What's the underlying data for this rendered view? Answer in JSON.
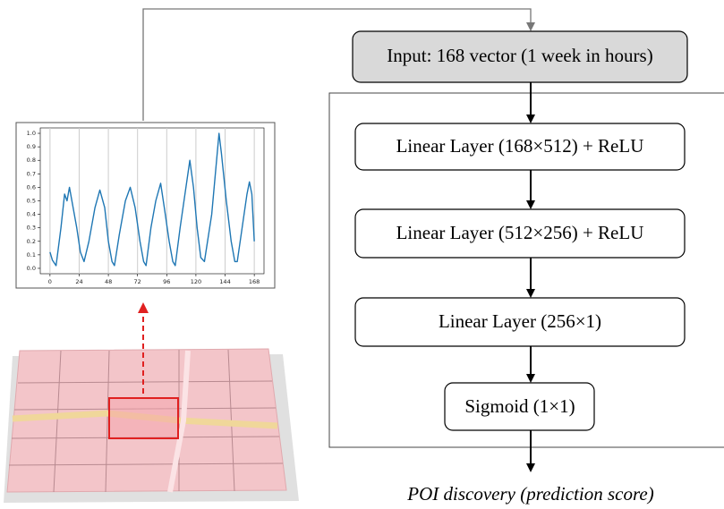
{
  "input": {
    "label": "Input: 168 vector (1 week in hours)"
  },
  "layers": [
    {
      "label": "Linear Layer (168×512) + ReLU"
    },
    {
      "label": "Linear Layer (512×256) + ReLU"
    },
    {
      "label": "Linear Layer (256×1)"
    },
    {
      "label": "Sigmoid (1×1)"
    }
  ],
  "output": {
    "label": "POI discovery (prediction score)"
  },
  "chart_data": {
    "type": "line",
    "x": [
      0,
      2,
      5,
      9,
      12,
      14,
      16,
      19,
      22,
      25,
      28,
      32,
      37,
      41,
      45,
      48,
      51,
      53,
      57,
      62,
      66,
      70,
      74,
      77,
      79,
      83,
      87,
      91,
      94,
      98,
      101,
      103,
      107,
      111,
      115,
      118,
      121,
      124,
      127,
      133,
      137,
      139,
      141,
      145,
      149,
      152,
      154,
      158,
      162,
      164,
      166,
      168
    ],
    "values": [
      0.12,
      0.06,
      0.02,
      0.3,
      0.55,
      0.5,
      0.6,
      0.45,
      0.3,
      0.12,
      0.05,
      0.2,
      0.45,
      0.58,
      0.45,
      0.2,
      0.05,
      0.02,
      0.25,
      0.5,
      0.6,
      0.45,
      0.2,
      0.05,
      0.02,
      0.3,
      0.5,
      0.63,
      0.45,
      0.2,
      0.05,
      0.02,
      0.3,
      0.55,
      0.8,
      0.6,
      0.3,
      0.08,
      0.05,
      0.4,
      0.8,
      1.0,
      0.85,
      0.5,
      0.2,
      0.05,
      0.05,
      0.3,
      0.55,
      0.64,
      0.55,
      0.2
    ],
    "color": "#1f77b4",
    "xlim": [
      -8,
      176
    ],
    "ylim": [
      -0.04,
      1.04
    ],
    "xticks": [
      0,
      24,
      48,
      72,
      96,
      120,
      144,
      168
    ],
    "yticks": [
      {
        "value": 0,
        "label": "0.0"
      },
      0.1,
      0.2,
      0.3,
      0.4,
      0.5,
      0.6,
      0.7,
      0.8,
      0.9,
      {
        "value": 1,
        "label": "1.0"
      }
    ],
    "grid": true
  }
}
